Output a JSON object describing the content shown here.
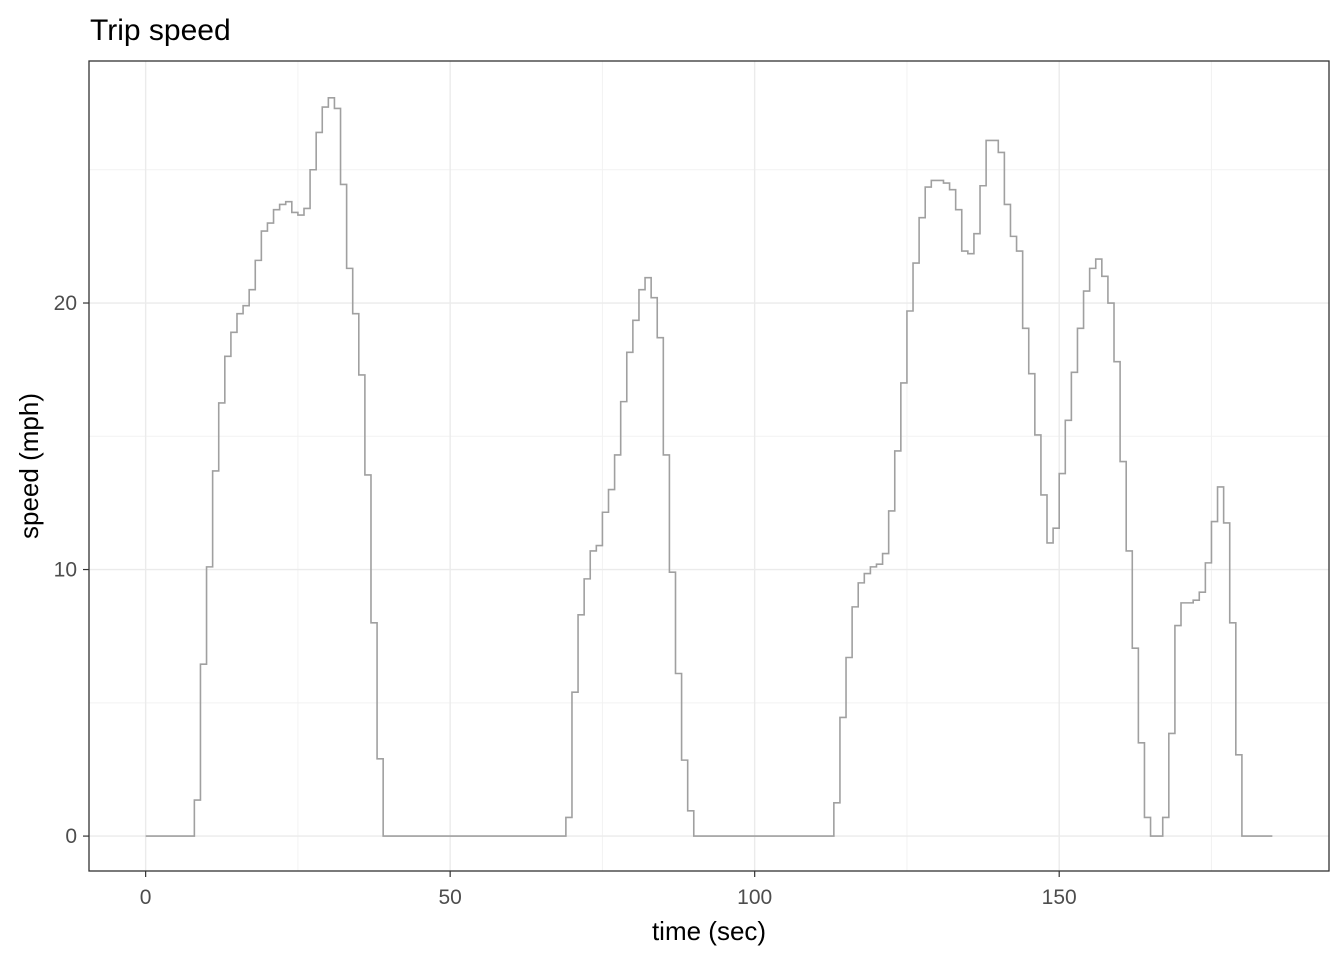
{
  "chart_data": {
    "type": "step",
    "title": "Trip speed",
    "x_label": "time (sec)",
    "y_label": "speed (mph)",
    "x": [
      0,
      1,
      2,
      3,
      4,
      5,
      6,
      7,
      8,
      9,
      10,
      11,
      12,
      13,
      14,
      15,
      16,
      17,
      18,
      19,
      20,
      21,
      22,
      23,
      24,
      25,
      26,
      27,
      28,
      29,
      30,
      31,
      32,
      33,
      34,
      35,
      36,
      37,
      38,
      39,
      40,
      41,
      42,
      43,
      44,
      45,
      46,
      47,
      48,
      49,
      50,
      51,
      52,
      53,
      54,
      55,
      56,
      57,
      58,
      59,
      60,
      61,
      62,
      63,
      64,
      65,
      66,
      67,
      68,
      69,
      70,
      71,
      72,
      73,
      74,
      75,
      76,
      77,
      78,
      79,
      80,
      81,
      82,
      83,
      84,
      85,
      86,
      87,
      88,
      89,
      90,
      91,
      92,
      93,
      94,
      95,
      96,
      97,
      98,
      99,
      100,
      101,
      102,
      103,
      104,
      105,
      106,
      107,
      108,
      109,
      110,
      111,
      112,
      113,
      114,
      115,
      116,
      117,
      118,
      119,
      120,
      121,
      122,
      123,
      124,
      125,
      126,
      127,
      128,
      129,
      130,
      131,
      132,
      133,
      134,
      135,
      136,
      137,
      138,
      139,
      140,
      141,
      142,
      143,
      144,
      145,
      146,
      147,
      148,
      149,
      150,
      151,
      152,
      153,
      154,
      155,
      156,
      157,
      158,
      159,
      160,
      161,
      162,
      163,
      164,
      165,
      166,
      167,
      168,
      169,
      170,
      171,
      172,
      173,
      174,
      175,
      176,
      177,
      178,
      179,
      180,
      181,
      182,
      183,
      184,
      185
    ],
    "series": [
      {
        "color": "#a0a0a0",
        "values": [
          0,
          0,
          0,
          0,
          0,
          0,
          0,
          0,
          1.35,
          6.45,
          10.1,
          13.7,
          16.25,
          18.0,
          18.9,
          19.6,
          19.9,
          20.5,
          21.6,
          22.7,
          23.0,
          23.5,
          23.7,
          23.8,
          23.4,
          23.3,
          23.55,
          25.0,
          26.4,
          27.35,
          27.7,
          27.3,
          24.45,
          21.3,
          19.6,
          17.3,
          13.55,
          8.0,
          2.9,
          0,
          0,
          0,
          0,
          0,
          0,
          0,
          0,
          0,
          0,
          0,
          0,
          0,
          0,
          0,
          0,
          0,
          0,
          0,
          0,
          0,
          0,
          0,
          0,
          0,
          0,
          0,
          0,
          0,
          0,
          0.7,
          5.4,
          8.3,
          9.65,
          10.7,
          10.9,
          12.15,
          13.0,
          14.3,
          16.3,
          18.15,
          19.35,
          20.5,
          20.95,
          20.2,
          18.7,
          14.3,
          9.9,
          6.1,
          2.85,
          0.95,
          0,
          0,
          0,
          0,
          0,
          0,
          0,
          0,
          0,
          0,
          0,
          0,
          0,
          0,
          0,
          0,
          0,
          0,
          0,
          0,
          0,
          0,
          0,
          1.25,
          4.45,
          6.7,
          8.6,
          9.5,
          9.85,
          10.1,
          10.2,
          10.6,
          12.2,
          14.45,
          17.0,
          19.7,
          21.5,
          23.2,
          24.35,
          24.6,
          24.6,
          24.5,
          24.25,
          23.5,
          21.95,
          21.85,
          22.6,
          24.4,
          26.1,
          26.1,
          25.65,
          23.7,
          22.5,
          21.95,
          19.05,
          17.35,
          15.05,
          12.8,
          11.0,
          11.55,
          13.6,
          15.6,
          17.4,
          19.05,
          20.45,
          21.3,
          21.65,
          21.0,
          20.0,
          17.8,
          14.05,
          10.7,
          7.05,
          3.5,
          0.7,
          0,
          0,
          0.7,
          3.85,
          7.9,
          8.75,
          8.75,
          8.85,
          9.15,
          10.25,
          11.8,
          13.1,
          11.75,
          8.0,
          3.05,
          0,
          0,
          0,
          0,
          0,
          0
        ]
      }
    ],
    "xlim": [
      -9.3,
      194.3
    ],
    "ylim": [
      -1.31,
      29.08
    ],
    "xticks": [
      0,
      50,
      100,
      150
    ],
    "yticks": [
      0,
      10,
      20
    ],
    "grid": true
  }
}
